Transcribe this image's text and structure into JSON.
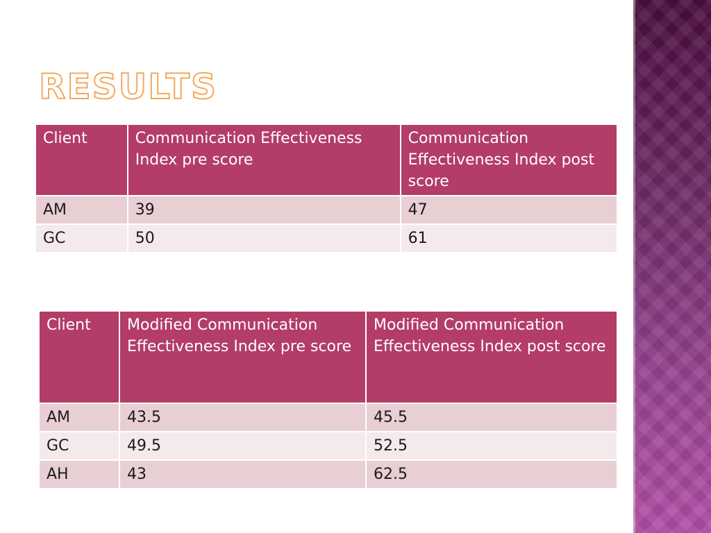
{
  "slide": {
    "title": "RESULTS",
    "accent_color": "#b33c68",
    "title_outline_color": "#f2a95c"
  },
  "table1": {
    "headers": [
      "Client",
      "Communication Effectiveness Index pre score",
      "Communication Effectiveness Index post score"
    ],
    "rows": [
      [
        "AM",
        "39",
        "47"
      ],
      [
        "GC",
        "50",
        "61"
      ]
    ]
  },
  "table2": {
    "headers": [
      "Client",
      "Modified Communication Effectiveness Index pre score",
      "Modified Communication Effectiveness Index post score"
    ],
    "rows": [
      [
        "AM",
        "43.5",
        "45.5"
      ],
      [
        "GC",
        "49.5",
        "52.5"
      ],
      [
        "AH",
        "43",
        "62.5"
      ]
    ]
  }
}
